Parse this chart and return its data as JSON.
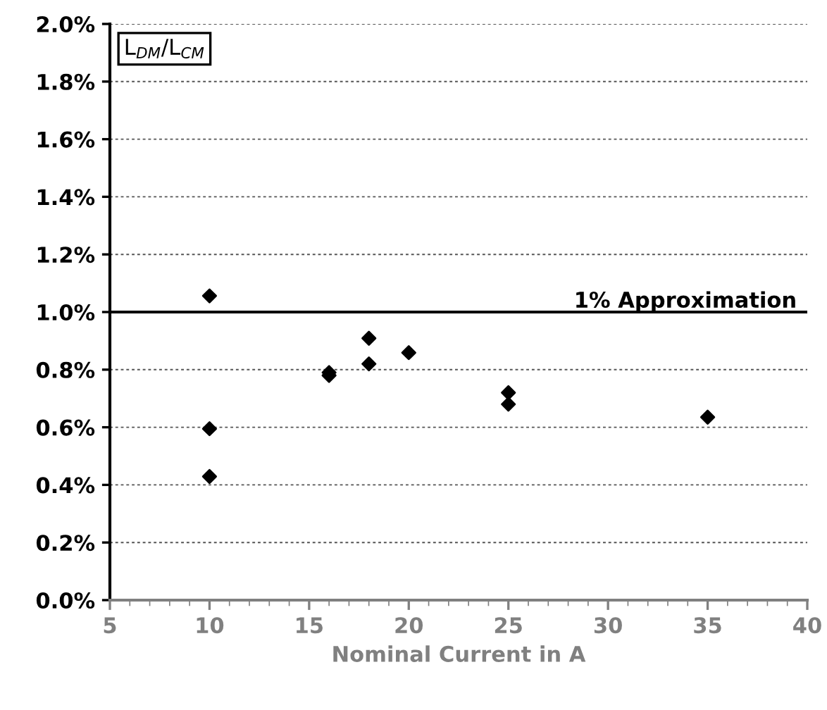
{
  "chart_data": {
    "type": "scatter",
    "xlabel": "Nominal Current in A",
    "annotations": [
      "L$_{DM}$/L$_{CM}$"
    ],
    "x": [
      10,
      10,
      10,
      16,
      16,
      18,
      18,
      20,
      25,
      25,
      35
    ],
    "series": [
      {
        "color": "#000000",
        "values": [
          1.056,
          0.595,
          0.429,
          0.79,
          0.78,
          0.909,
          0.82,
          0.859,
          0.72,
          0.68,
          0.635
        ]
      }
    ],
    "marker": "diamond",
    "grid": "y",
    "legend": false,
    "xlim": [
      5,
      40
    ],
    "xticks": [
      5,
      10,
      15,
      20,
      25,
      30,
      35,
      40
    ],
    "ylim": [
      0,
      2
    ],
    "yticks": [
      {
        "value": 0,
        "label": "0.0%"
      },
      {
        "value": 0.2,
        "label": "0.2%"
      },
      {
        "value": 0.4,
        "label": "0.4%"
      },
      {
        "value": 0.6,
        "label": "0.6%"
      },
      {
        "value": 0.8,
        "label": "0.8%"
      },
      {
        "value": 1.0,
        "label": "1.0%"
      },
      {
        "value": 1.2,
        "label": "1.2%"
      },
      {
        "value": 1.4,
        "label": "1.4%"
      },
      {
        "value": 1.6,
        "label": "1.6%"
      },
      {
        "value": 1.8,
        "label": "1.8%"
      },
      {
        "value": 2.0,
        "label": "2.0%"
      }
    ],
    "ref_lines": [
      {
        "axis": "y",
        "value": 1.0,
        "label": "1% Approximation",
        "color": "#000000",
        "line_style": "solid"
      }
    ]
  }
}
